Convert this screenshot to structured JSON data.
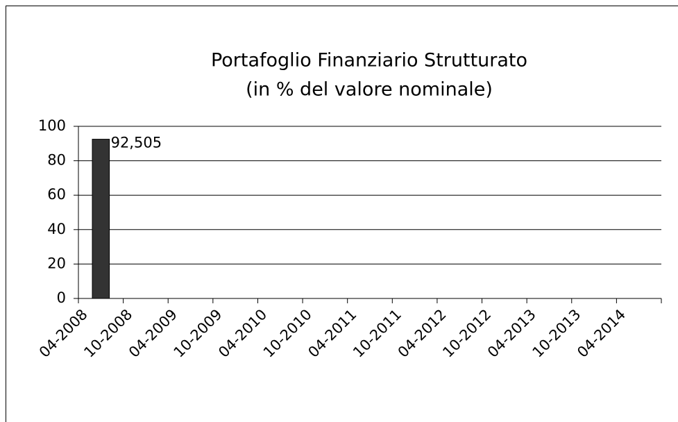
{
  "chart_data": {
    "type": "bar",
    "title": "Portafoglio Finanziario Strutturato",
    "subtitle": "(in % del valore nominale)",
    "categories": [
      "04-2008",
      "10-2008",
      "04-2009",
      "10-2009",
      "04-2010",
      "10-2010",
      "04-2011",
      "10-2011",
      "04-2012",
      "10-2012",
      "04-2013",
      "10-2013",
      "04-2014"
    ],
    "values": [
      92.505,
      null,
      null,
      null,
      null,
      null,
      null,
      null,
      null,
      null,
      null,
      null,
      null
    ],
    "value_labels": [
      "92,505",
      null,
      null,
      null,
      null,
      null,
      null,
      null,
      null,
      null,
      null,
      null,
      null
    ],
    "color": "#333333",
    "ylim": [
      0,
      100
    ],
    "yticks": [
      0,
      20,
      40,
      60,
      80,
      100
    ],
    "grid": true
  }
}
